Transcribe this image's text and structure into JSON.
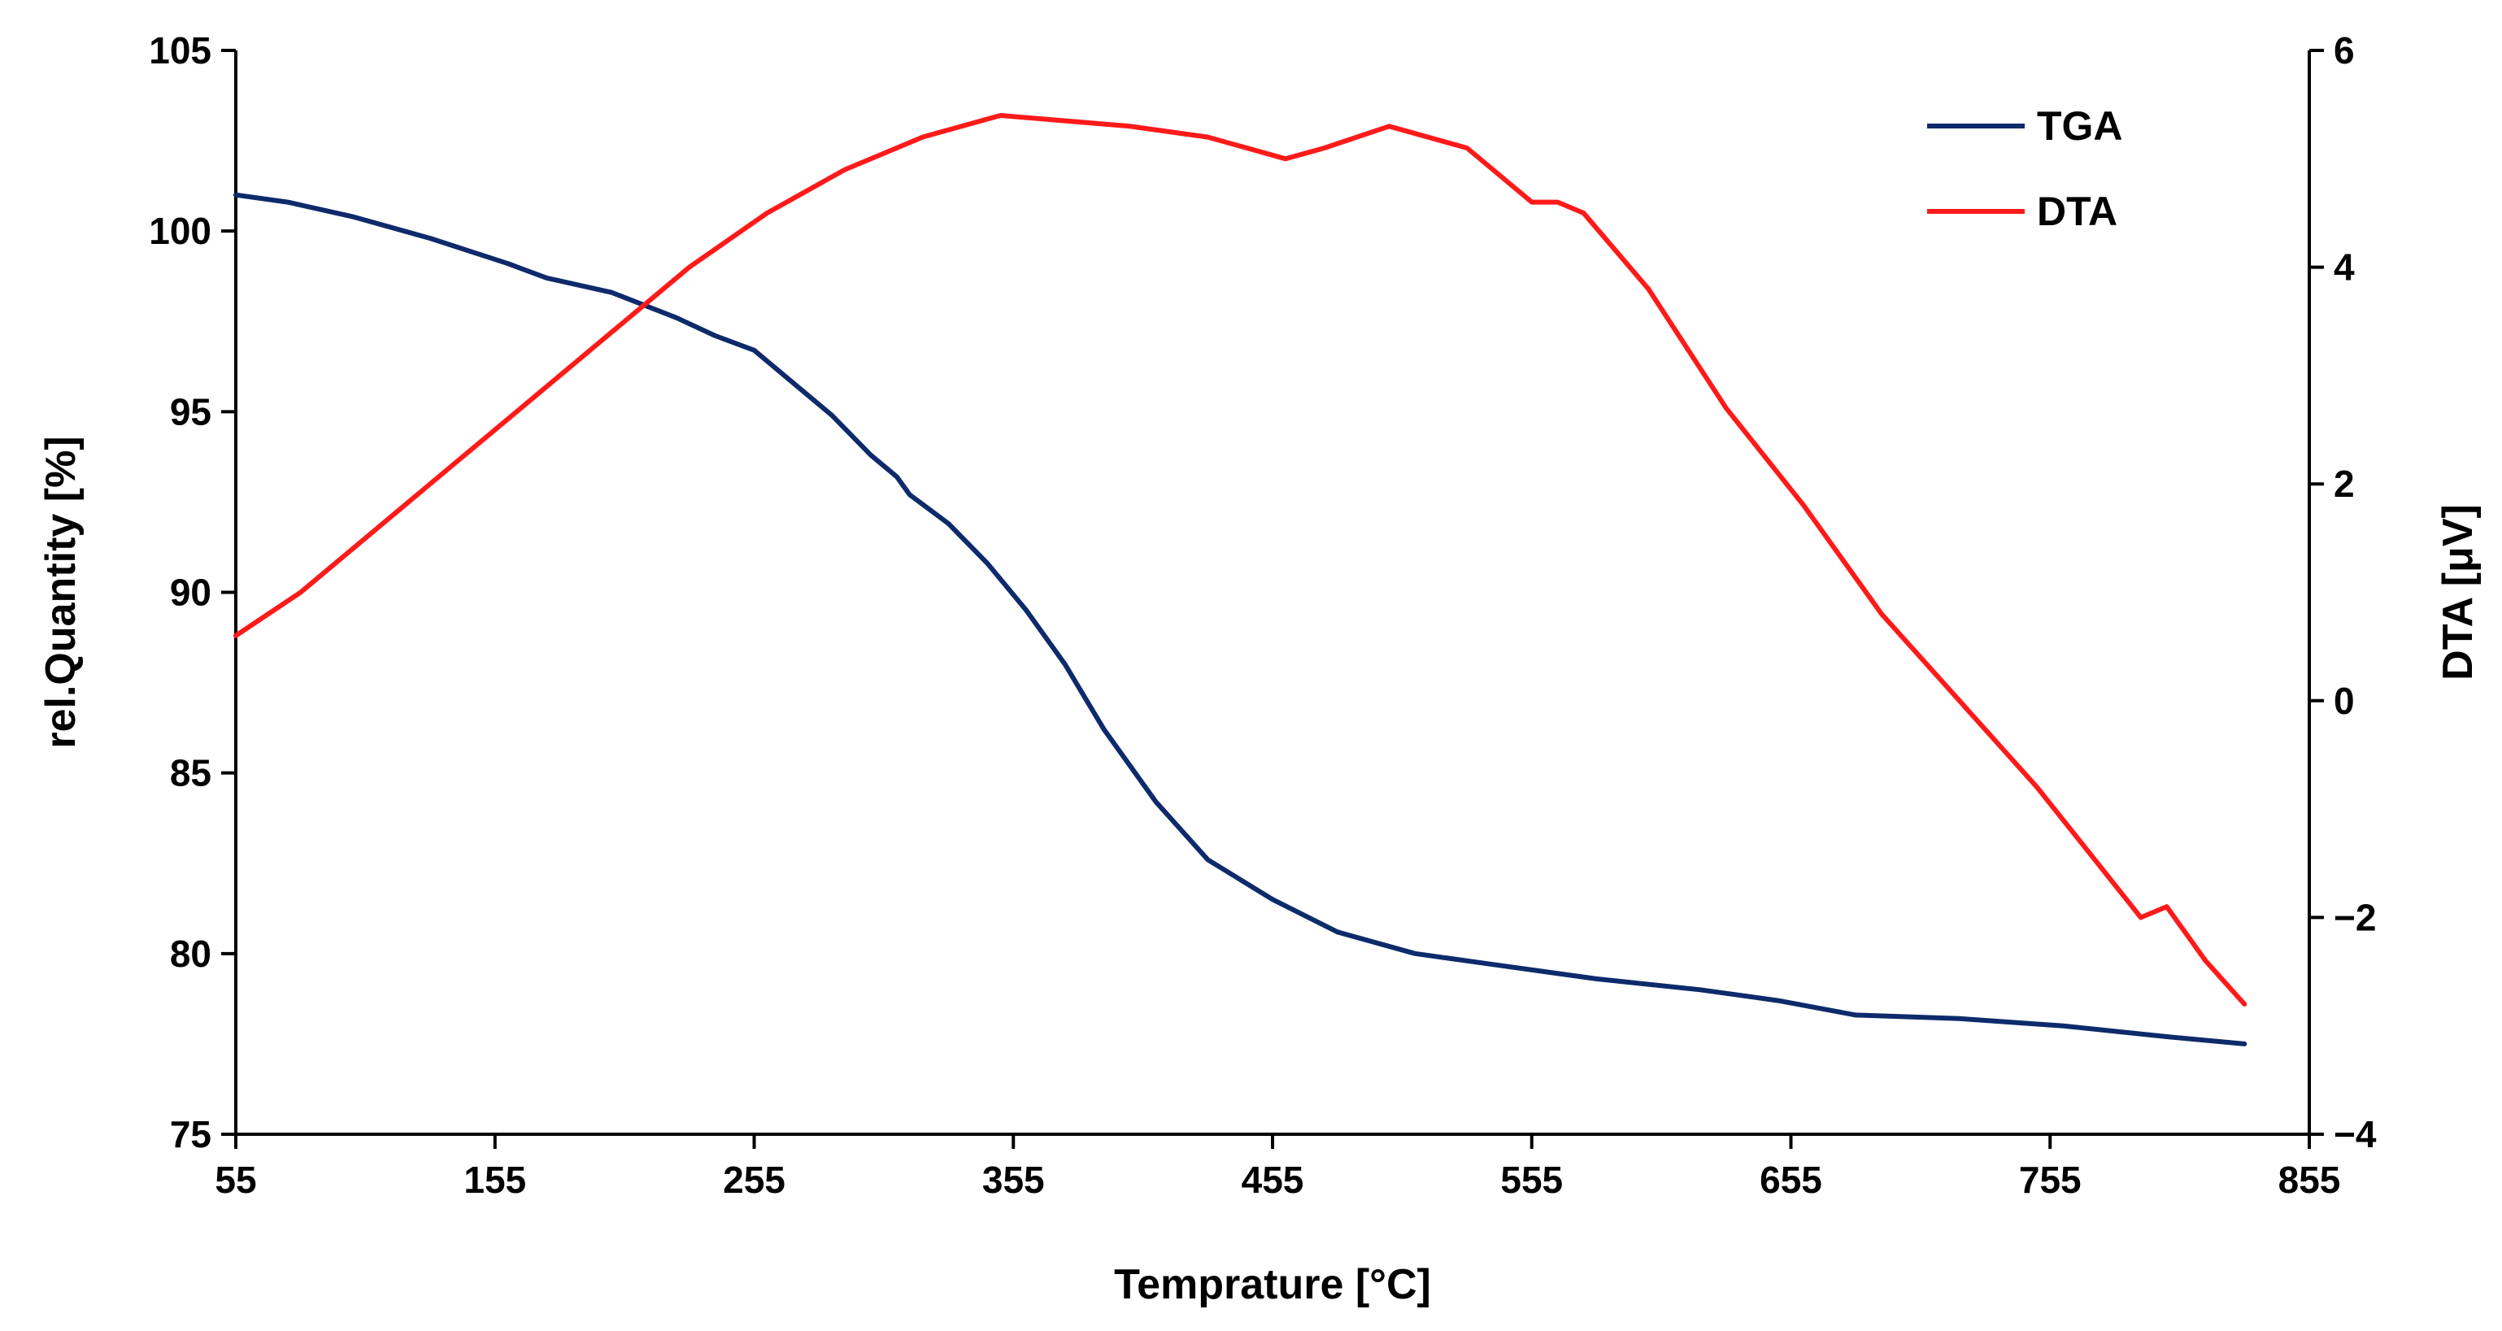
{
  "chart_data": {
    "type": "line",
    "title": "",
    "xlabel": "Temprature [°C]",
    "ylabel": "rel.Quantity [%]",
    "y2label": "DTA [μV]",
    "xlim": [
      55,
      855
    ],
    "ylim": [
      75,
      105
    ],
    "y2lim": [
      -4,
      6
    ],
    "xticks": [
      "55",
      "155",
      "255",
      "355",
      "455",
      "555",
      "655",
      "755",
      "855"
    ],
    "yticks": [
      "75",
      "80",
      "85",
      "90",
      "95",
      "100",
      "105"
    ],
    "y2ticks": [
      "−4",
      "−2",
      "0",
      "2",
      "4",
      "6"
    ],
    "grid": false,
    "legend": "top-right",
    "series": [
      {
        "name": "TGA",
        "axis": "left",
        "color": "#0d2a6b",
        "x": [
          55,
          75,
          100,
          130,
          160,
          175,
          200,
          225,
          240,
          255,
          270,
          285,
          300,
          310,
          315,
          330,
          345,
          360,
          375,
          390,
          410,
          430,
          455,
          480,
          510,
          540,
          580,
          620,
          650,
          680,
          720,
          760,
          800,
          830
        ],
        "y": [
          101.0,
          100.8,
          100.4,
          99.8,
          99.1,
          98.7,
          98.3,
          97.6,
          97.1,
          96.7,
          95.8,
          94.9,
          93.8,
          93.2,
          92.7,
          91.9,
          90.8,
          89.5,
          88.0,
          86.2,
          84.2,
          82.6,
          81.5,
          80.6,
          80.0,
          79.7,
          79.3,
          79.0,
          78.7,
          78.3,
          78.2,
          78.0,
          77.7,
          77.5
        ]
      },
      {
        "name": "DTA",
        "axis": "right",
        "color": "#ff1a1a",
        "x": [
          55,
          80,
          110,
          140,
          170,
          200,
          230,
          260,
          290,
          320,
          350,
          375,
          400,
          430,
          460,
          475,
          500,
          530,
          555,
          565,
          575,
          600,
          630,
          660,
          690,
          720,
          750,
          770,
          790,
          800,
          815,
          830
        ],
        "y": [
          0.6,
          1.0,
          1.6,
          2.2,
          2.8,
          3.4,
          4.0,
          4.5,
          4.9,
          5.2,
          5.4,
          5.35,
          5.3,
          5.2,
          5.0,
          5.1,
          5.3,
          5.1,
          4.6,
          4.6,
          4.5,
          3.8,
          2.7,
          1.8,
          0.8,
          0.0,
          -0.8,
          -1.4,
          -2.0,
          -1.9,
          -2.4,
          -2.8
        ]
      }
    ]
  }
}
